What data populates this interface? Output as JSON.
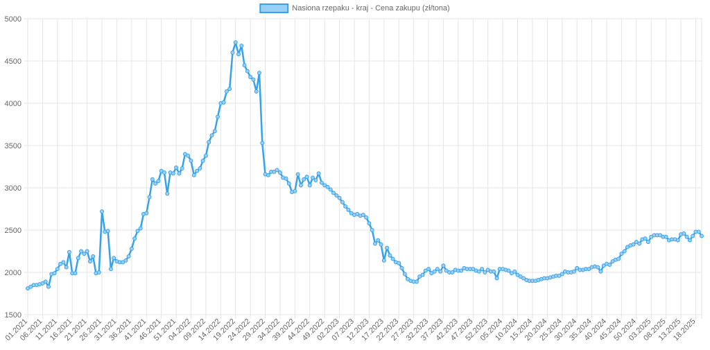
{
  "chart_data": {
    "type": "line",
    "series": [
      {
        "name": "Nasiona rzepaku - kraj - Cena zakupu (zł/tona)",
        "color": "#36a2eb",
        "values": [
          1810,
          1830,
          1850,
          1850,
          1860,
          1870,
          1890,
          1830,
          1980,
          1990,
          2040,
          2100,
          2120,
          2060,
          2240,
          1990,
          1990,
          2170,
          2250,
          2220,
          2250,
          2130,
          2190,
          1990,
          2000,
          2720,
          2480,
          2490,
          2040,
          2170,
          2130,
          2120,
          2120,
          2140,
          2190,
          2280,
          2400,
          2490,
          2520,
          2690,
          2700,
          2890,
          3100,
          3050,
          3080,
          3200,
          3180,
          2930,
          3180,
          3170,
          3240,
          3170,
          3230,
          3400,
          3380,
          3320,
          3150,
          3200,
          3230,
          3320,
          3380,
          3540,
          3620,
          3670,
          3840,
          4000,
          4010,
          4140,
          4170,
          4600,
          4720,
          4580,
          4680,
          4450,
          4380,
          4310,
          4280,
          4140,
          4360,
          3530,
          3160,
          3150,
          3190,
          3190,
          3210,
          3180,
          3120,
          3110,
          3050,
          2950,
          2960,
          3160,
          3030,
          3100,
          3130,
          3030,
          3120,
          3090,
          3170,
          3060,
          3030,
          3010,
          2980,
          2940,
          2910,
          2880,
          2830,
          2780,
          2740,
          2700,
          2680,
          2690,
          2670,
          2680,
          2650,
          2580,
          2500,
          2340,
          2380,
          2330,
          2140,
          2290,
          2200,
          2160,
          2120,
          2110,
          2050,
          1980,
          1920,
          1900,
          1890,
          1890,
          1950,
          1970,
          2020,
          2040,
          1990,
          2010,
          2040,
          2010,
          2080,
          2020,
          2000,
          2000,
          2030,
          2020,
          2020,
          2050,
          2040,
          2040,
          2040,
          2020,
          2010,
          2040,
          2000,
          2030,
          2010,
          2010,
          1930,
          2040,
          2040,
          2030,
          2020,
          1990,
          2010,
          1970,
          1950,
          1930,
          1910,
          1900,
          1900,
          1900,
          1910,
          1920,
          1930,
          1930,
          1940,
          1950,
          1960,
          1960,
          1980,
          2010,
          2000,
          2000,
          2010,
          2050,
          2030,
          2030,
          2040,
          2040,
          2060,
          2070,
          2060,
          2010,
          2080,
          2100,
          2090,
          2130,
          2150,
          2160,
          2220,
          2250,
          2300,
          2320,
          2330,
          2360,
          2340,
          2390,
          2400,
          2360,
          2420,
          2440,
          2440,
          2440,
          2420,
          2420,
          2380,
          2390,
          2390,
          2380,
          2450,
          2460,
          2420,
          2380,
          2430,
          2480,
          2480,
          2430
        ]
      }
    ],
    "categories": [
      "01.2021",
      null,
      null,
      null,
      null,
      "06.2021",
      null,
      null,
      null,
      null,
      "11.2021",
      null,
      null,
      null,
      null,
      "16.2021",
      null,
      null,
      null,
      null,
      "21.2021",
      null,
      null,
      null,
      null,
      "26.2021",
      null,
      null,
      null,
      null,
      "31.2021",
      null,
      null,
      null,
      null,
      "36.2021",
      null,
      null,
      null,
      null,
      "41.2021",
      null,
      null,
      null,
      null,
      "46.2021",
      null,
      null,
      null,
      null,
      "51.2021",
      null,
      null,
      null,
      null,
      "04.2022",
      null,
      null,
      null,
      null,
      "09.2022",
      null,
      null,
      null,
      null,
      "14.2022",
      null,
      null,
      null,
      null,
      "19.2022",
      null,
      null,
      null,
      null,
      "24.2022",
      null,
      null,
      null,
      null,
      "29.2022",
      null,
      null,
      null,
      null,
      "34.2022",
      null,
      null,
      null,
      null,
      "39.2022",
      null,
      null,
      null,
      null,
      "44.2022",
      null,
      null,
      null,
      null,
      "49.2022",
      null,
      null,
      null,
      null,
      "02.2023",
      null,
      null,
      null,
      null,
      "07.2023",
      null,
      null,
      null,
      null,
      "12.2023",
      null,
      null,
      null,
      null,
      "17.2023",
      null,
      null,
      null,
      null,
      "22.2023",
      null,
      null,
      null,
      null,
      "27.2023",
      null,
      null,
      null,
      null,
      "32.2023",
      null,
      null,
      null,
      null,
      "37.2023",
      null,
      null,
      null,
      null,
      "42.2023",
      null,
      null,
      null,
      null,
      "47.2023",
      null,
      null,
      null,
      null,
      "52.2023",
      null,
      null,
      null,
      null,
      "05.2024",
      null,
      null,
      null,
      null,
      "10.2024",
      null,
      null,
      null,
      null,
      "15.2024",
      null,
      null,
      null,
      null,
      "20.2024",
      null,
      null,
      null,
      null,
      "25.2024",
      null,
      null,
      null,
      null,
      "30.2024",
      null,
      null,
      null,
      null,
      "35.2024",
      null,
      null,
      null,
      null,
      "40.2024",
      null,
      null,
      null,
      null,
      "45.2024",
      null,
      null,
      null,
      null,
      "50.2024",
      null,
      null,
      null,
      null,
      "03.2025",
      null,
      null,
      null,
      null,
      "08.2025",
      null,
      null,
      null,
      null,
      "13.2025",
      null,
      null,
      null,
      null,
      "18.2025",
      null,
      null
    ],
    "ylim": [
      1500,
      5000
    ],
    "yticks": [
      1500,
      2000,
      2500,
      3000,
      3500,
      4000,
      4500,
      5000
    ],
    "grid": true,
    "legend": "top"
  }
}
